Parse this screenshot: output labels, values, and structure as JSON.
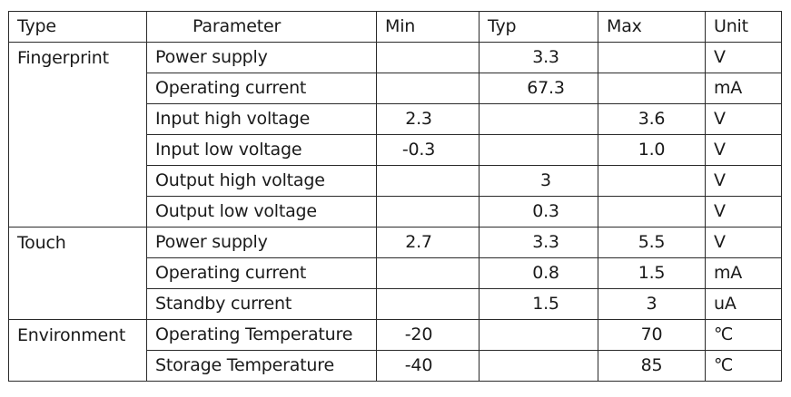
{
  "headers": {
    "type": "Type",
    "parameter": "Parameter",
    "min": "Min",
    "typ": "Typ",
    "max": "Max",
    "unit": "Unit"
  },
  "groups": [
    {
      "type": "Fingerprint",
      "rows": [
        {
          "parameter": "Power supply",
          "min": "",
          "typ": "3.3",
          "max": "",
          "unit": "V"
        },
        {
          "parameter": "Operating current",
          "min": "",
          "typ": "67.3",
          "max": "",
          "unit": "mA"
        },
        {
          "parameter": "Input high voltage",
          "min": "2.3",
          "typ": "",
          "max": "3.6",
          "unit": "V"
        },
        {
          "parameter": "Input low voltage",
          "min": "-0.3",
          "typ": "",
          "max": "1.0",
          "unit": "V"
        },
        {
          "parameter": "Output high voltage",
          "min": "",
          "typ": "3",
          "max": "",
          "unit": "V"
        },
        {
          "parameter": "Output low voltage",
          "min": "",
          "typ": "0.3",
          "max": "",
          "unit": "V"
        }
      ]
    },
    {
      "type": "Touch",
      "rows": [
        {
          "parameter": "Power supply",
          "min": "2.7",
          "typ": "3.3",
          "max": "5.5",
          "unit": "V"
        },
        {
          "parameter": "Operating current",
          "min": "",
          "typ": "0.8",
          "max": "1.5",
          "unit": "mA"
        },
        {
          "parameter": "Standby current",
          "min": "",
          "typ": "1.5",
          "max": "3",
          "unit": "uA"
        }
      ]
    },
    {
      "type": "Environment",
      "rows": [
        {
          "parameter": "Operating Temperature",
          "min": "-20",
          "typ": "",
          "max": "70",
          "unit": "℃"
        },
        {
          "parameter": "Storage Temperature",
          "min": "-40",
          "typ": "",
          "max": "85",
          "unit": "℃"
        }
      ]
    }
  ]
}
